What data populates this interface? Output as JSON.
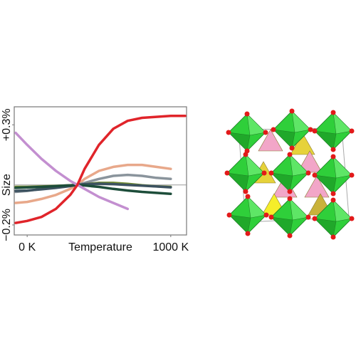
{
  "chart_data": {
    "type": "line",
    "xlabel": "Temperature",
    "ylabel": "Size",
    "x": [
      -80,
      0,
      100,
      200,
      300,
      350,
      400,
      500,
      600,
      700,
      800,
      900,
      1000,
      1100
    ],
    "xlim": [
      -90,
      1110
    ],
    "xticks": [
      {
        "value": 0,
        "label": "0 K"
      },
      {
        "value": 1000,
        "label": "1000 K"
      }
    ],
    "ylim": [
      -0.25,
      0.39
    ],
    "yticks": [
      {
        "value": -0.2,
        "label": "−0.2%"
      },
      {
        "value": 0.3,
        "label": "+0.3%"
      }
    ],
    "series": [
      {
        "color": "#e8a88a",
        "values": [
          -0.09,
          -0.085,
          -0.07,
          -0.05,
          -0.02,
          0,
          0.03,
          0.07,
          0.09,
          0.1,
          0.1,
          0.09,
          0.08,
          null
        ]
      },
      {
        "color": "#8a949c",
        "values": [
          -0.035,
          -0.03,
          -0.02,
          -0.01,
          -0.004,
          0,
          0.01,
          0.03,
          0.045,
          0.05,
          0.045,
          0.035,
          0.03,
          null
        ]
      },
      {
        "color": "#6f8a2e",
        "values": [
          -0.01,
          -0.01,
          -0.008,
          -0.005,
          -0.002,
          0,
          0.003,
          0.01,
          0.01,
          0.005,
          -0.002,
          -0.007,
          -0.01,
          null
        ]
      },
      {
        "color": "#3c5260",
        "values": [
          -0.03,
          -0.028,
          -0.022,
          -0.015,
          -0.006,
          0,
          0.004,
          0.006,
          0.004,
          0.0,
          -0.004,
          -0.008,
          -0.012,
          null
        ]
      },
      {
        "color": "#1d4d3a",
        "values": [
          -0.015,
          -0.013,
          -0.01,
          -0.006,
          -0.002,
          0,
          -0.003,
          -0.01,
          -0.02,
          -0.028,
          -0.035,
          -0.04,
          -0.045,
          null
        ]
      },
      {
        "color": "#c38fd0",
        "values": [
          0.26,
          0.2,
          0.13,
          0.07,
          0.02,
          0,
          -0.02,
          -0.06,
          -0.09,
          -0.12,
          null,
          null,
          null,
          null
        ]
      },
      {
        "color": "#e0242a",
        "values": [
          -0.19,
          -0.18,
          -0.16,
          -0.12,
          -0.05,
          0,
          0.08,
          0.2,
          0.28,
          0.32,
          0.335,
          0.34,
          0.345,
          0.345
        ]
      }
    ]
  }
}
